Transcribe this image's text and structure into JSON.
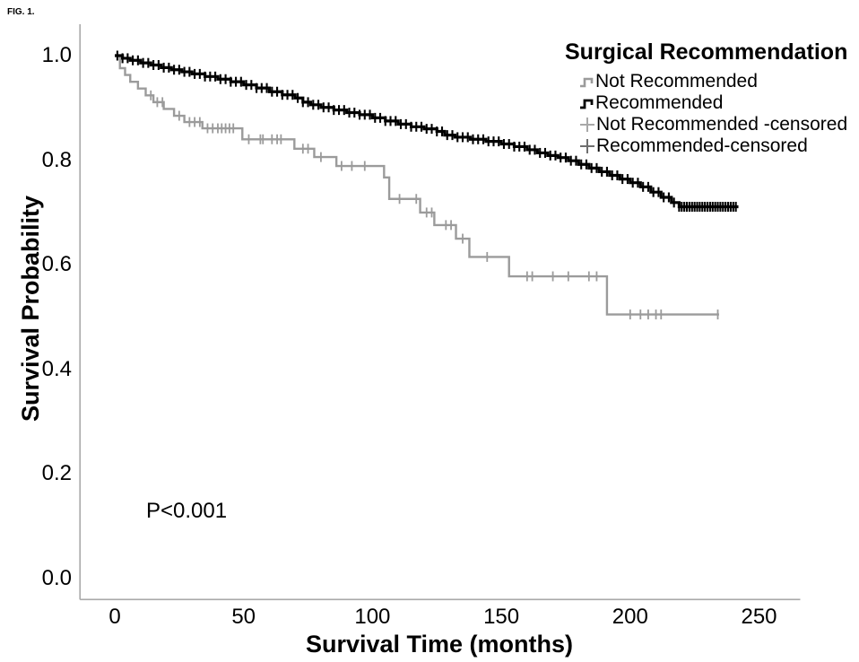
{
  "figure": {
    "label": "FIG. 1."
  },
  "chart_data": {
    "type": "line",
    "subtype": "kaplan-meier-step",
    "title": "Surgical Recommendation",
    "xlabel": "Survival Time (months)",
    "ylabel": "Survival Probability",
    "annotation": "P<0.001",
    "xlim": [
      -13.5,
      266
    ],
    "ylim": [
      -0.04,
      1.06
    ],
    "grid": false,
    "legend_position": "top-right",
    "axis_color": "#a9a9a9",
    "xticks": [
      {
        "label": "0",
        "value": 0
      },
      {
        "label": "50",
        "value": 50
      },
      {
        "label": "100",
        "value": 100
      },
      {
        "label": "150",
        "value": 150
      },
      {
        "label": "200",
        "value": 200
      },
      {
        "label": "250",
        "value": 250
      }
    ],
    "yticks": [
      {
        "label": "0.0",
        "value": 0.0
      },
      {
        "label": "0.2",
        "value": 0.2
      },
      {
        "label": "0.4",
        "value": 0.4
      },
      {
        "label": "0.6",
        "value": 0.6
      },
      {
        "label": "0.8",
        "value": 0.8
      },
      {
        "label": "1.0",
        "value": 1.0
      }
    ],
    "series": [
      {
        "name": "Not Recommended",
        "color": "#9b9b9b",
        "line_width": 2.4,
        "points": [
          [
            0,
            1.0
          ],
          [
            2,
            0.976
          ],
          [
            4,
            0.963
          ],
          [
            6,
            0.95
          ],
          [
            9,
            0.937
          ],
          [
            12,
            0.924
          ],
          [
            15,
            0.911
          ],
          [
            19,
            0.898
          ],
          [
            23,
            0.885
          ],
          [
            27,
            0.873
          ],
          [
            34,
            0.861
          ],
          [
            49.5,
            0.84
          ],
          [
            69.7,
            0.822
          ],
          [
            77.4,
            0.806
          ],
          [
            86,
            0.789
          ],
          [
            104.5,
            0.767
          ],
          [
            106.5,
            0.726
          ],
          [
            118.5,
            0.7
          ],
          [
            124,
            0.676
          ],
          [
            132.4,
            0.65
          ],
          [
            137.6,
            0.615
          ],
          [
            153,
            0.578
          ],
          [
            191,
            0.505
          ],
          [
            234.5,
            0.505
          ]
        ],
        "censor_times": [
          14,
          16.5,
          18.5,
          25,
          29,
          31,
          33,
          36,
          38,
          40,
          41.5,
          43,
          44.5,
          46,
          52,
          56.5,
          57.5,
          61,
          63,
          64.5,
          73,
          75,
          80,
          88,
          92,
          97,
          110.5,
          117,
          121,
          123,
          128.5,
          130.5,
          135,
          144.5,
          160,
          162,
          170,
          176,
          184,
          187,
          200,
          204,
          207,
          210,
          212,
          234
        ]
      },
      {
        "name": "Recommended",
        "color": "#000000",
        "line_width": 3.2,
        "points": [
          [
            0,
            1.0
          ],
          [
            3,
            0.995
          ],
          [
            6,
            0.991
          ],
          [
            10,
            0.986
          ],
          [
            14,
            0.982
          ],
          [
            18,
            0.977
          ],
          [
            22,
            0.973
          ],
          [
            26,
            0.969
          ],
          [
            30,
            0.965
          ],
          [
            35,
            0.96
          ],
          [
            40,
            0.955
          ],
          [
            45,
            0.95
          ],
          [
            50,
            0.944
          ],
          [
            55,
            0.938
          ],
          [
            60,
            0.931
          ],
          [
            65,
            0.925
          ],
          [
            70,
            0.919
          ],
          [
            73,
            0.911
          ],
          [
            76,
            0.906
          ],
          [
            80,
            0.901
          ],
          [
            85,
            0.896
          ],
          [
            90,
            0.891
          ],
          [
            95,
            0.887
          ],
          [
            100,
            0.881
          ],
          [
            105,
            0.875
          ],
          [
            110,
            0.869
          ],
          [
            115,
            0.864
          ],
          [
            120,
            0.86
          ],
          [
            125,
            0.855
          ],
          [
            128,
            0.848
          ],
          [
            132,
            0.844
          ],
          [
            138,
            0.84
          ],
          [
            144,
            0.836
          ],
          [
            150,
            0.831
          ],
          [
            155,
            0.826
          ],
          [
            160,
            0.82
          ],
          [
            164,
            0.814
          ],
          [
            168,
            0.809
          ],
          [
            172,
            0.805
          ],
          [
            176,
            0.799
          ],
          [
            180,
            0.792
          ],
          [
            184,
            0.785
          ],
          [
            188,
            0.778
          ],
          [
            192,
            0.771
          ],
          [
            196,
            0.764
          ],
          [
            200,
            0.757
          ],
          [
            204,
            0.749
          ],
          [
            208,
            0.739
          ],
          [
            212,
            0.729
          ],
          [
            216,
            0.719
          ],
          [
            219,
            0.711
          ],
          [
            242,
            0.711
          ]
        ],
        "censor_times": [
          1,
          3,
          5,
          7,
          9,
          11,
          13,
          15,
          17,
          19,
          21,
          23,
          25,
          27,
          29,
          31,
          33,
          35,
          37,
          39,
          41,
          43,
          45,
          47,
          49,
          51,
          53,
          55,
          57,
          59,
          61,
          63,
          65,
          67,
          69,
          71,
          73,
          75,
          77,
          79,
          81,
          83,
          85,
          87,
          89,
          91,
          93,
          95,
          97,
          99,
          101,
          103,
          105,
          107,
          109,
          111,
          113,
          115,
          117,
          119,
          121,
          123,
          125,
          127,
          129,
          131,
          133,
          135,
          137,
          139,
          141,
          143,
          145,
          147,
          149,
          151,
          153,
          155,
          157,
          159,
          161,
          163,
          165,
          167,
          169,
          171,
          173,
          175,
          177,
          179,
          181,
          183,
          185,
          187,
          189,
          191,
          193,
          195,
          197,
          199,
          201,
          203,
          205,
          207,
          209,
          211,
          213,
          215,
          217,
          219,
          220,
          221,
          222,
          223,
          224,
          225,
          226,
          227,
          228,
          229,
          230,
          231,
          232,
          233,
          234,
          235,
          236,
          237,
          238,
          239,
          240,
          241
        ]
      }
    ]
  },
  "legend": {
    "title": "Surgical Recommendation",
    "items": [
      {
        "label": "Not Recommended",
        "glyph": "step-line",
        "color": "#9b9b9b"
      },
      {
        "label": "Recommended",
        "glyph": "step-line",
        "color": "#000000"
      },
      {
        "label": "Not Recommended -censored",
        "glyph": "plus-mark",
        "color": "#a8a8a8"
      },
      {
        "label": "Recommended-censored",
        "glyph": "plus-mark",
        "color": "#6e6e6e"
      }
    ]
  }
}
